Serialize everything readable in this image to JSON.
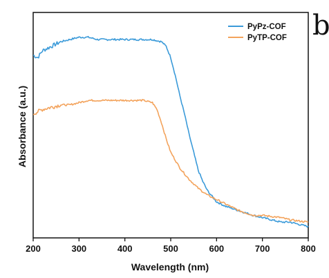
{
  "chart_data": {
    "type": "line",
    "title": "",
    "xlabel": "Wavelength (nm)",
    "ylabel": "Absorbance (a.u.)",
    "xlim": [
      200,
      800
    ],
    "ylim": [
      0,
      1
    ],
    "x_ticks": [
      200,
      300,
      400,
      500,
      600,
      700,
      800
    ],
    "y_ticks_shown": false,
    "grid": false,
    "legend_position": "top-right",
    "panel_letter": "b",
    "series": [
      {
        "name": "PyPz-COF",
        "color": "#3a9ad9",
        "x": [
          200,
          210,
          220,
          240,
          260,
          280,
          300,
          320,
          340,
          360,
          380,
          400,
          420,
          440,
          460,
          480,
          490,
          500,
          510,
          520,
          530,
          540,
          550,
          560,
          570,
          580,
          600,
          620,
          650,
          680,
          700,
          740,
          760,
          800
        ],
        "y": [
          0.81,
          0.8,
          0.83,
          0.85,
          0.87,
          0.88,
          0.89,
          0.89,
          0.88,
          0.88,
          0.88,
          0.88,
          0.88,
          0.88,
          0.88,
          0.87,
          0.85,
          0.8,
          0.72,
          0.63,
          0.55,
          0.46,
          0.38,
          0.3,
          0.25,
          0.21,
          0.16,
          0.14,
          0.12,
          0.1,
          0.09,
          0.07,
          0.07,
          0.05
        ]
      },
      {
        "name": "PyTP-COF",
        "color": "#f3a35c",
        "x": [
          200,
          210,
          220,
          240,
          260,
          280,
          300,
          320,
          340,
          360,
          380,
          400,
          420,
          440,
          460,
          470,
          480,
          490,
          500,
          520,
          540,
          560,
          580,
          600,
          620,
          650,
          680,
          700,
          740,
          760,
          800
        ],
        "y": [
          0.55,
          0.56,
          0.57,
          0.58,
          0.59,
          0.59,
          0.6,
          0.61,
          0.61,
          0.61,
          0.61,
          0.61,
          0.61,
          0.61,
          0.6,
          0.57,
          0.51,
          0.44,
          0.38,
          0.31,
          0.26,
          0.22,
          0.19,
          0.17,
          0.15,
          0.12,
          0.1,
          0.1,
          0.09,
          0.08,
          0.07
        ]
      }
    ]
  }
}
